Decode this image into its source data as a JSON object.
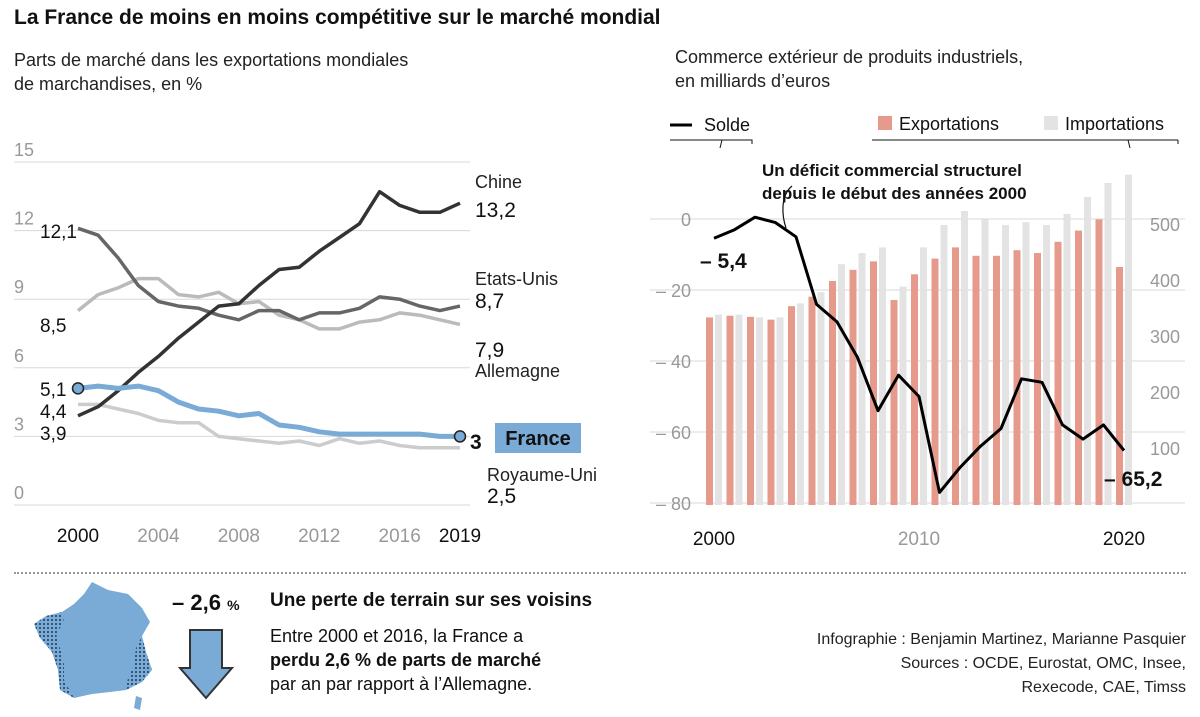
{
  "title": "La France de moins en moins compétitive sur le marché mondial",
  "subtitle_left": [
    "Parts de marché dans les exportations mondiales",
    "de marchandises, en %"
  ],
  "subtitle_right": [
    "Commerce extérieur de produits industriels,",
    "en milliards d’euros"
  ],
  "colors": {
    "china": "#333333",
    "us": "#666666",
    "germany": "#bbbbbb",
    "uk": "#cccccc",
    "france": "#7aaad6",
    "france_label_bg": "#7aaad6",
    "exports": "#e59a8c",
    "imports": "#e3e3e3",
    "balance": "#000000"
  },
  "chart_data": [
    {
      "type": "line",
      "x": [
        2000,
        2001,
        2002,
        2003,
        2004,
        2005,
        2006,
        2007,
        2008,
        2009,
        2010,
        2011,
        2012,
        2013,
        2014,
        2015,
        2016,
        2017,
        2018,
        2019
      ],
      "series": [
        {
          "name": "Chine",
          "values": [
            3.9,
            4.3,
            5.0,
            5.8,
            6.5,
            7.3,
            8.0,
            8.7,
            8.8,
            9.6,
            10.3,
            10.4,
            11.1,
            11.7,
            12.3,
            13.7,
            13.1,
            12.8,
            12.8,
            13.2
          ]
        },
        {
          "name": "Etats-Unis",
          "values": [
            12.1,
            11.8,
            10.8,
            9.6,
            8.9,
            8.7,
            8.6,
            8.3,
            8.1,
            8.5,
            8.5,
            8.1,
            8.4,
            8.4,
            8.6,
            9.1,
            9.0,
            8.7,
            8.5,
            8.7
          ]
        },
        {
          "name": "Allemagne",
          "values": [
            8.5,
            9.2,
            9.5,
            9.9,
            9.9,
            9.2,
            9.1,
            9.3,
            8.8,
            8.9,
            8.3,
            8.1,
            7.7,
            7.7,
            8.0,
            8.1,
            8.4,
            8.3,
            8.1,
            7.9
          ]
        },
        {
          "name": "Royaume-Uni",
          "values": [
            4.4,
            4.4,
            4.2,
            4.0,
            3.7,
            3.6,
            3.6,
            3.0,
            2.9,
            2.8,
            2.7,
            2.8,
            2.6,
            2.9,
            2.7,
            2.8,
            2.6,
            2.5,
            2.5,
            2.5
          ]
        },
        {
          "name": "France",
          "values": [
            5.1,
            5.2,
            5.1,
            5.2,
            5.0,
            4.5,
            4.2,
            4.1,
            3.9,
            4.0,
            3.5,
            3.4,
            3.2,
            3.1,
            3.1,
            3.1,
            3.1,
            3.1,
            3.0,
            3.0
          ]
        }
      ],
      "yticks": [
        0,
        3,
        6,
        9,
        12,
        15
      ],
      "ylim": [
        0,
        15
      ],
      "xtick_labels": [
        "2000",
        "2004",
        "2008",
        "2012",
        "2016",
        "2019"
      ],
      "start_labels": {
        "Etats-Unis": "12,1",
        "Allemagne": "8,5",
        "France": "5,1",
        "Royaume-Uni": "4,4",
        "Chine": "3,9"
      },
      "end_labels": {
        "Chine": "13,2",
        "Etats-Unis": "8,7",
        "Allemagne": "7,9",
        "France": "3",
        "Royaume-Uni": "2,5"
      },
      "grid": true
    },
    {
      "type": "bar",
      "x": [
        2000,
        2001,
        2002,
        2003,
        2004,
        2005,
        2006,
        2007,
        2008,
        2009,
        2010,
        2011,
        2012,
        2013,
        2014,
        2015,
        2016,
        2017,
        2018,
        2019,
        2020
      ],
      "series": [
        {
          "name": "Exportations",
          "values": [
            335,
            338,
            336,
            331,
            355,
            372,
            400,
            420,
            435,
            366,
            412,
            440,
            460,
            445,
            445,
            455,
            450,
            470,
            490,
            510,
            425
          ]
        },
        {
          "name": "Importations",
          "values": [
            340,
            340,
            335,
            335,
            360,
            380,
            430,
            450,
            460,
            390,
            460,
            500,
            525,
            510,
            500,
            505,
            500,
            520,
            550,
            575,
            590
          ]
        },
        {
          "name": "Solde",
          "values": [
            -5.4,
            -3.0,
            0.5,
            -1.0,
            -5.0,
            -24,
            -29,
            -39,
            -54,
            -44,
            -50,
            -77,
            -70,
            -64,
            -59,
            -45,
            -46,
            -58,
            -62,
            -58,
            -65.2
          ]
        }
      ],
      "y_left_ticks": [
        "0",
        "– 20",
        "– 40",
        "– 60",
        "– 80"
      ],
      "y_left_lim": [
        -80,
        0
      ],
      "y_right_ticks": [
        100,
        200,
        300,
        400,
        500
      ],
      "y_right_lim": [
        0,
        580
      ],
      "xtick_labels": [
        "2000",
        "2010",
        "2020"
      ],
      "annotation": [
        "Un déficit commercial structurel",
        "depuis le début des années 2000"
      ],
      "start_label": "– 5,4",
      "end_label": "– 65,2",
      "grid": true
    }
  ],
  "legend": {
    "solde": "Solde",
    "exports": "Exportations",
    "imports": "Importations"
  },
  "bottom": {
    "pct": "– 2,6",
    "pct_unit": "%",
    "heading": "Une perte de terrain sur ses voisins",
    "body_1": "Entre 2000 et 2016, la France a",
    "body_2": "perdu 2,6 % de parts de marché",
    "body_3": "par an par rapport à l’Allemagne."
  },
  "credits": [
    "Infographie : Benjamin Martinez, Marianne Pasquier",
    "Sources : OCDE, Eurostat, OMC, Insee,",
    "Rexecode, CAE, Timss"
  ]
}
